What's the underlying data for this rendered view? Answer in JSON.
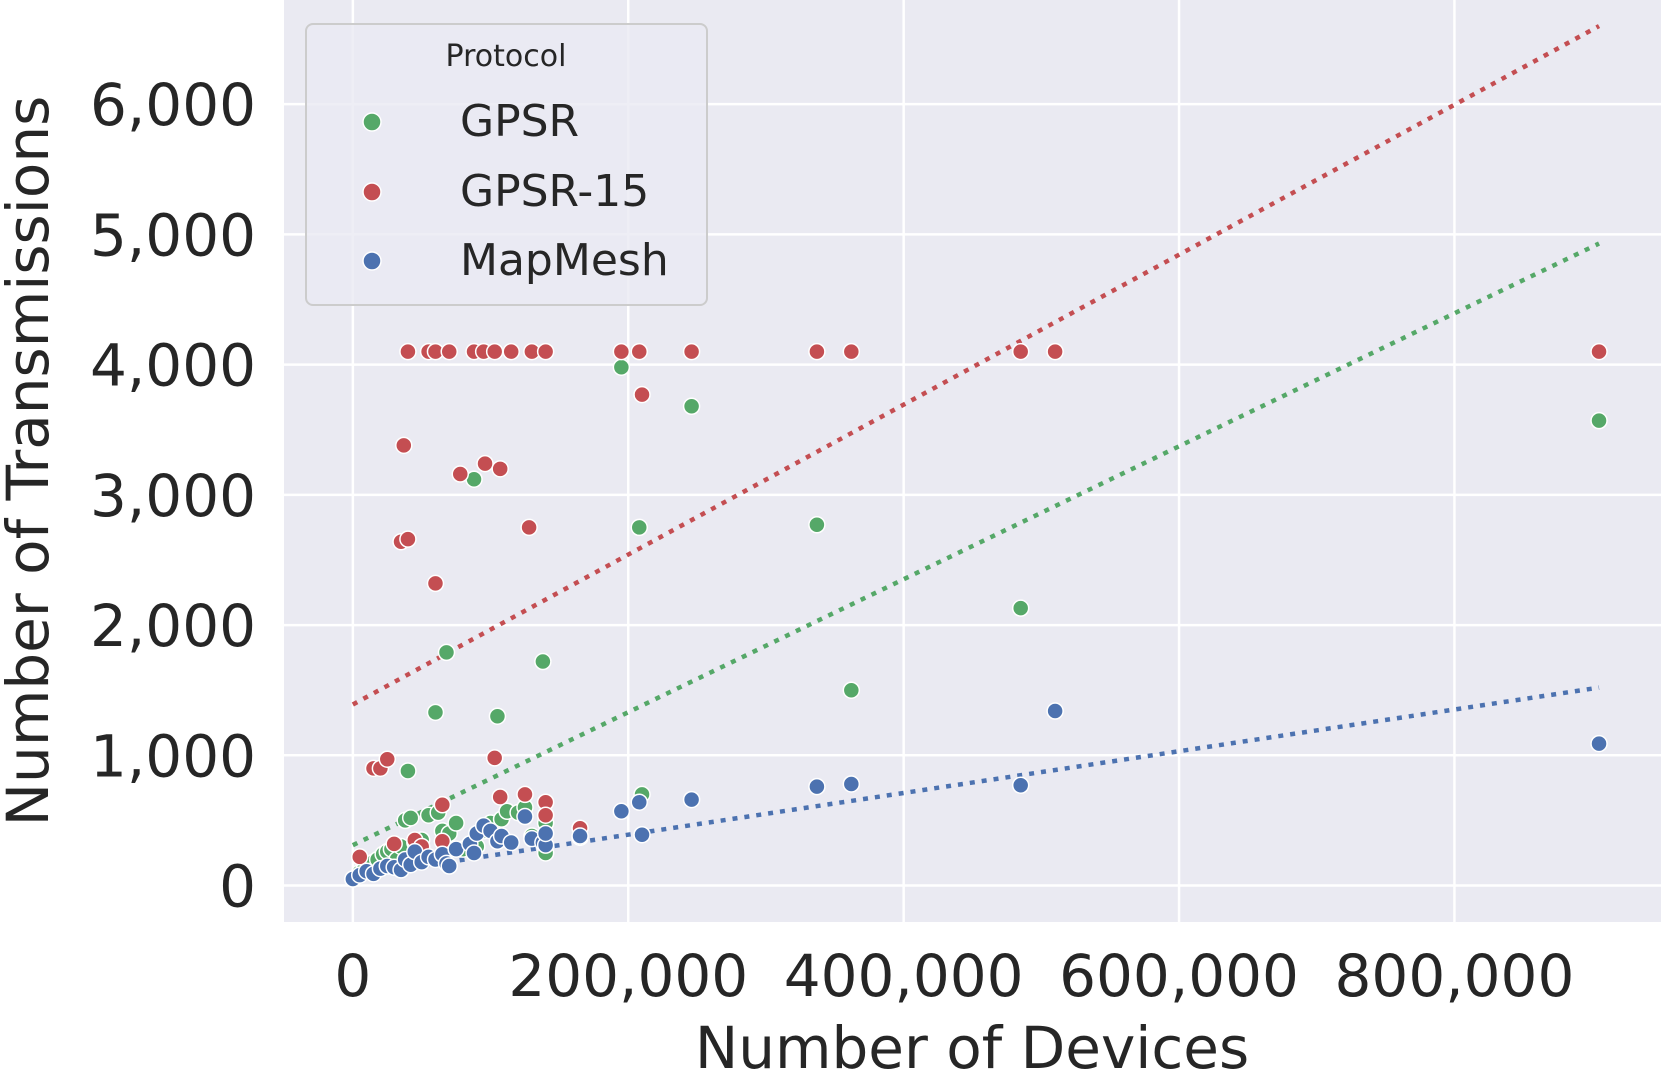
{
  "chart_data": {
    "type": "scatter",
    "title": "",
    "xlabel": "Number of Devices",
    "ylabel": "Number of Transmissions",
    "xlim": [
      -50000,
      950000
    ],
    "ylim": [
      -280,
      6800
    ],
    "x_ticks": [
      0,
      200000,
      400000,
      600000,
      800000
    ],
    "x_tick_labels": [
      "0",
      "200,000",
      "400,000",
      "600,000",
      "800,000"
    ],
    "y_ticks": [
      0,
      1000,
      2000,
      3000,
      4000,
      5000,
      6000
    ],
    "y_tick_labels": [
      "0",
      "1,000",
      "2,000",
      "3,000",
      "4,000",
      "5,000",
      "6,000"
    ],
    "grid": true,
    "legend": {
      "title": "Protocol",
      "position": "top-left"
    },
    "series": [
      {
        "name": "GPSR",
        "color": "#55a868",
        "points": [
          [
            0,
            50
          ],
          [
            5000,
            100
          ],
          [
            8000,
            120
          ],
          [
            12000,
            150
          ],
          [
            15000,
            180
          ],
          [
            18000,
            200
          ],
          [
            22000,
            240
          ],
          [
            25000,
            260
          ],
          [
            28000,
            280
          ],
          [
            32000,
            200
          ],
          [
            35000,
            300
          ],
          [
            38000,
            500
          ],
          [
            40000,
            880
          ],
          [
            42000,
            520
          ],
          [
            45000,
            330
          ],
          [
            50000,
            350
          ],
          [
            55000,
            540
          ],
          [
            60000,
            1330
          ],
          [
            62000,
            560
          ],
          [
            65000,
            420
          ],
          [
            68000,
            1790
          ],
          [
            70000,
            400
          ],
          [
            75000,
            480
          ],
          [
            80000,
            280
          ],
          [
            88000,
            3120
          ],
          [
            90000,
            300
          ],
          [
            95000,
            420
          ],
          [
            100000,
            480
          ],
          [
            105000,
            1300
          ],
          [
            108000,
            510
          ],
          [
            112000,
            570
          ],
          [
            120000,
            560
          ],
          [
            125000,
            600
          ],
          [
            130000,
            380
          ],
          [
            138000,
            1720
          ],
          [
            140000,
            480
          ],
          [
            140000,
            250
          ],
          [
            165000,
            370
          ],
          [
            195000,
            3980
          ],
          [
            208000,
            2750
          ],
          [
            210000,
            700
          ],
          [
            246000,
            3680
          ],
          [
            337000,
            2770
          ],
          [
            362000,
            1500
          ],
          [
            485000,
            2130
          ],
          [
            905000,
            3570
          ]
        ]
      },
      {
        "name": "GPSR-15",
        "color": "#c44e52",
        "points": [
          [
            5000,
            220
          ],
          [
            15000,
            900
          ],
          [
            20000,
            900
          ],
          [
            25000,
            970
          ],
          [
            30000,
            320
          ],
          [
            35000,
            2640
          ],
          [
            37000,
            3380
          ],
          [
            40000,
            2660
          ],
          [
            40000,
            4100
          ],
          [
            45000,
            350
          ],
          [
            50000,
            300
          ],
          [
            55000,
            4100
          ],
          [
            60000,
            2320
          ],
          [
            60000,
            4100
          ],
          [
            65000,
            620
          ],
          [
            65000,
            340
          ],
          [
            70000,
            4100
          ],
          [
            78000,
            3160
          ],
          [
            88000,
            4100
          ],
          [
            95000,
            4100
          ],
          [
            96000,
            3240
          ],
          [
            103000,
            4100
          ],
          [
            103000,
            980
          ],
          [
            107000,
            3200
          ],
          [
            107000,
            680
          ],
          [
            115000,
            4100
          ],
          [
            125000,
            700
          ],
          [
            128000,
            2750
          ],
          [
            130000,
            4100
          ],
          [
            140000,
            4100
          ],
          [
            140000,
            640
          ],
          [
            140000,
            540
          ],
          [
            165000,
            440
          ],
          [
            195000,
            4100
          ],
          [
            208000,
            4100
          ],
          [
            210000,
            3770
          ],
          [
            246000,
            4100
          ],
          [
            337000,
            4100
          ],
          [
            362000,
            4100
          ],
          [
            485000,
            4100
          ],
          [
            510000,
            4100
          ],
          [
            905000,
            4100
          ]
        ]
      },
      {
        "name": "MapMesh",
        "color": "#4c72b0",
        "points": [
          [
            0,
            50
          ],
          [
            5000,
            80
          ],
          [
            10000,
            110
          ],
          [
            15000,
            90
          ],
          [
            20000,
            130
          ],
          [
            25000,
            150
          ],
          [
            30000,
            140
          ],
          [
            35000,
            120
          ],
          [
            38000,
            200
          ],
          [
            42000,
            160
          ],
          [
            45000,
            260
          ],
          [
            50000,
            180
          ],
          [
            55000,
            220
          ],
          [
            60000,
            200
          ],
          [
            65000,
            240
          ],
          [
            68000,
            170
          ],
          [
            70000,
            150
          ],
          [
            75000,
            280
          ],
          [
            85000,
            320
          ],
          [
            88000,
            250
          ],
          [
            90000,
            400
          ],
          [
            95000,
            460
          ],
          [
            100000,
            420
          ],
          [
            105000,
            340
          ],
          [
            108000,
            380
          ],
          [
            115000,
            330
          ],
          [
            125000,
            530
          ],
          [
            130000,
            360
          ],
          [
            138000,
            330
          ],
          [
            140000,
            310
          ],
          [
            140000,
            400
          ],
          [
            165000,
            380
          ],
          [
            195000,
            570
          ],
          [
            208000,
            640
          ],
          [
            210000,
            390
          ],
          [
            246000,
            660
          ],
          [
            337000,
            760
          ],
          [
            362000,
            780
          ],
          [
            485000,
            770
          ],
          [
            510000,
            1340
          ],
          [
            905000,
            1090
          ]
        ]
      }
    ],
    "trendlines": [
      {
        "name": "GPSR-15",
        "color": "#c44e52",
        "x": [
          0,
          905000
        ],
        "y": [
          1390,
          6600
        ]
      },
      {
        "name": "GPSR",
        "color": "#55a868",
        "x": [
          0,
          905000
        ],
        "y": [
          310,
          4930
        ]
      },
      {
        "name": "MapMesh",
        "color": "#4c72b0",
        "x": [
          0,
          905000
        ],
        "y": [
          70,
          1520
        ]
      }
    ]
  }
}
